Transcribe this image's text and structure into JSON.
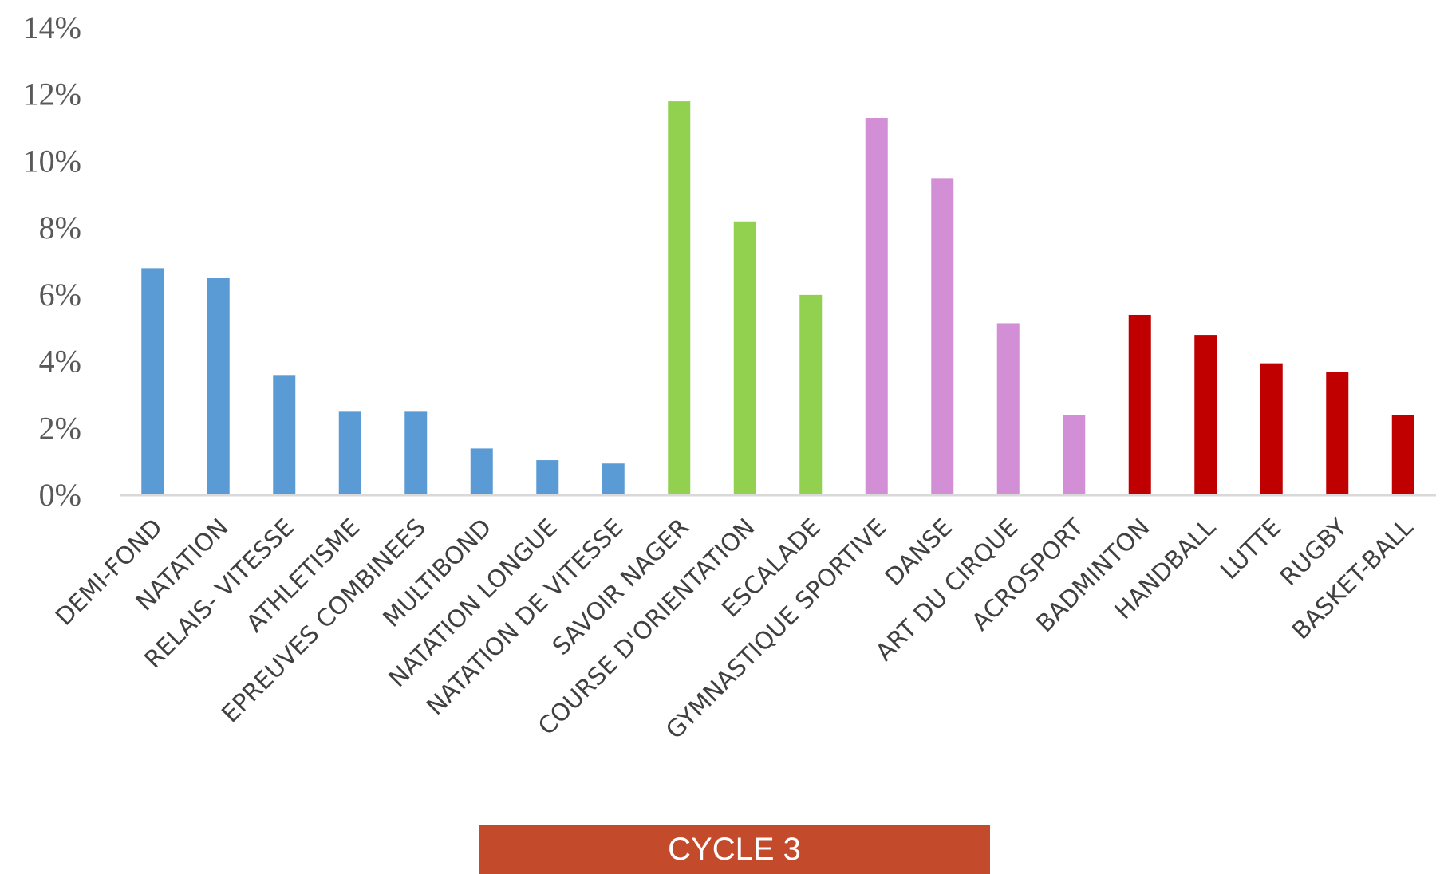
{
  "banner": {
    "label": "CYCLE 3",
    "color": "#c44a2c"
  },
  "colors": {
    "axis_line": "#d9d9d9",
    "tick_text": "#595959",
    "category_text": "#404040"
  },
  "chart_data": {
    "type": "bar",
    "title": "",
    "xlabel": "",
    "ylabel": "",
    "ylim": [
      0,
      14
    ],
    "y_unit": "%",
    "yticks": [
      "0%",
      "2%",
      "4%",
      "6%",
      "8%",
      "10%",
      "12%",
      "14%"
    ],
    "grid": false,
    "legend": "none",
    "categories": [
      "DEMI-FOND",
      "NATATION",
      "RELAIS- VITESSE",
      "ATHLETISME",
      "EPREUVES COMBINEES",
      "MULTIBOND",
      "NATATION LONGUE",
      "NATATION DE VITESSE",
      "SAVOIR NAGER",
      "COURSE D'ORIENTATION",
      "ESCALADE",
      "GYMNASTIQUE SPORTIVE",
      "DANSE",
      "ART DU CIRQUE",
      "ACROSPORT",
      "BADMINTON",
      "HANDBALL",
      "LUTTE",
      "RUGBY",
      "BASKET-BALL"
    ],
    "values": [
      6.8,
      6.5,
      3.6,
      2.5,
      2.5,
      1.4,
      1.05,
      0.95,
      11.8,
      8.2,
      6.0,
      11.3,
      9.5,
      5.15,
      2.4,
      5.4,
      4.8,
      3.95,
      3.7,
      2.4
    ],
    "bar_colors": [
      "#5b9bd5",
      "#5b9bd5",
      "#5b9bd5",
      "#5b9bd5",
      "#5b9bd5",
      "#5b9bd5",
      "#5b9bd5",
      "#5b9bd5",
      "#92d050",
      "#92d050",
      "#92d050",
      "#d38fd6",
      "#d38fd6",
      "#d38fd6",
      "#d38fd6",
      "#c00000",
      "#c00000",
      "#c00000",
      "#c00000",
      "#c00000"
    ]
  }
}
